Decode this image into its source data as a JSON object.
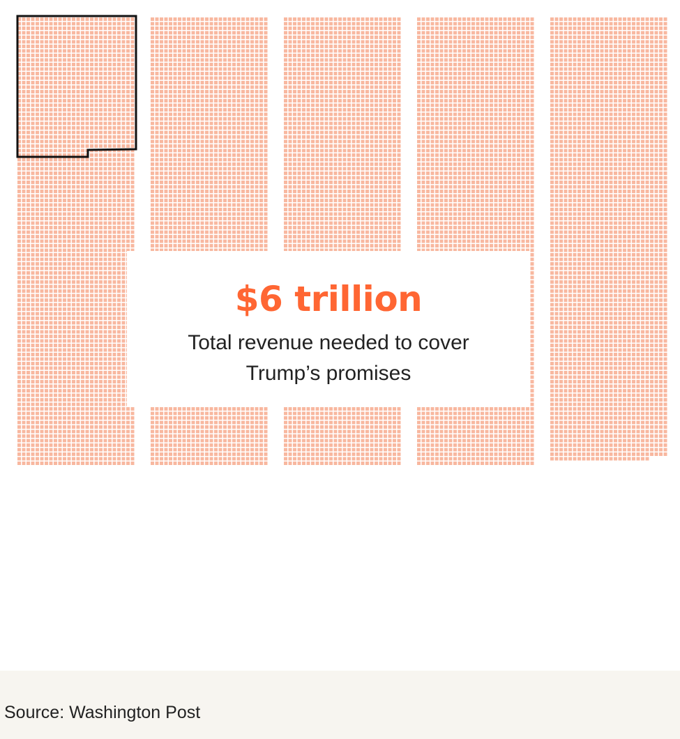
{
  "chart_data": {
    "type": "waffle",
    "title": "$6 trillion",
    "subtitle": "Total revenue needed to cover Trump’s promises",
    "columns": [
      {
        "cells_filled": 2574
      },
      {
        "cells_filled": 2574
      },
      {
        "cells_filled": 2574
      },
      {
        "cells_filled": 2574
      },
      {
        "cells_filled": 2544
      }
    ],
    "cell_color": "#f8b8a0",
    "highlight_outline_color": "#111111"
  },
  "callout": {
    "value": "$6 trillion",
    "value_color": "#ff6633",
    "caption_line1": "Total revenue needed to cover",
    "caption_line2": "Trump’s promises"
  },
  "footer": {
    "source": "Source: Washington Post",
    "background": "#f7f5f0"
  }
}
